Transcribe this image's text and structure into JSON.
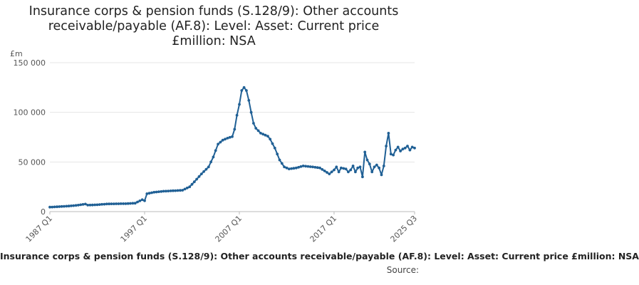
{
  "title_lines": [
    "Insurance corps & pension funds (S.128/9): Other accounts",
    "receivable/payable (AF.8): Level: Asset: Current price",
    "£million: NSA"
  ],
  "legend_label": "Insurance corps & pension funds (S.128/9): Other accounts receivable/payable (AF.8): Level: Asset: Current price £million: NSA",
  "source_label": "Source:",
  "colors": {
    "series": "#206095",
    "grid": "#e6e6e6",
    "axis": "#bbbbbb",
    "text": "#555555"
  },
  "chart_data": {
    "type": "line",
    "title": "Insurance corps & pension funds (S.128/9): Other accounts receivable/payable (AF.8): Level: Asset: Current price £million: NSA",
    "ylabel": "£m",
    "xlabel": "",
    "y_ticks": [
      0,
      50000,
      100000,
      150000
    ],
    "y_tick_labels": [
      "0",
      "50 000",
      "100 000",
      "150 000"
    ],
    "ylim": [
      0,
      150000
    ],
    "x_ticks": [
      "1987 Q1",
      "1997 Q1",
      "2007 Q1",
      "2017 Q1",
      "2025 Q3"
    ],
    "grid": true,
    "series": [
      {
        "name": "Insurance corps & pension funds (S.128/9): Other accounts receivable/payable (AF.8): Level: Asset: Current price £million: NSA",
        "start": "1987 Q1",
        "end": "2025 Q3",
        "keyframes": [
          [
            "1987 Q1",
            4500
          ],
          [
            "1988 Q1",
            5000
          ],
          [
            "1989 Q1",
            5600
          ],
          [
            "1990 Q1",
            6500
          ],
          [
            "1990 Q4",
            7600
          ],
          [
            "1991 Q1",
            6500
          ],
          [
            "1992 Q1",
            6900
          ],
          [
            "1993 Q1",
            7700
          ],
          [
            "1994 Q1",
            7900
          ],
          [
            "1995 Q1",
            8000
          ],
          [
            "1996 Q1",
            8500
          ],
          [
            "1996 Q4",
            12000
          ],
          [
            "1997 Q1",
            11000
          ],
          [
            "1997 Q2",
            18000
          ],
          [
            "1998 Q1",
            19500
          ],
          [
            "1999 Q1",
            20500
          ],
          [
            "2000 Q1",
            21000
          ],
          [
            "2001 Q1",
            21500
          ],
          [
            "2001 Q4",
            25000
          ],
          [
            "2002 Q2",
            30000
          ],
          [
            "2003 Q1",
            38000
          ],
          [
            "2003 Q4",
            45000
          ],
          [
            "2004 Q2",
            55000
          ],
          [
            "2004 Q4",
            68000
          ],
          [
            "2005 Q2",
            72000
          ],
          [
            "2005 Q4",
            74000
          ],
          [
            "2006 Q2",
            75500
          ],
          [
            "2006 Q3",
            83000
          ],
          [
            "2006 Q4",
            97000
          ],
          [
            "2007 Q1",
            108000
          ],
          [
            "2007 Q2",
            122000
          ],
          [
            "2007 Q3",
            125000
          ],
          [
            "2007 Q4",
            122000
          ],
          [
            "2008 Q1",
            112000
          ],
          [
            "2008 Q2",
            100000
          ],
          [
            "2008 Q3",
            89000
          ],
          [
            "2008 Q4",
            84000
          ],
          [
            "2009 Q2",
            79000
          ],
          [
            "2010 Q1",
            76000
          ],
          [
            "2010 Q2",
            73000
          ],
          [
            "2010 Q4",
            64000
          ],
          [
            "2011 Q2",
            52000
          ],
          [
            "2011 Q4",
            45000
          ],
          [
            "2012 Q2",
            43000
          ],
          [
            "2013 Q1",
            44000
          ],
          [
            "2013 Q4",
            46000
          ],
          [
            "2014 Q4",
            45000
          ],
          [
            "2015 Q3",
            44000
          ],
          [
            "2016 Q1",
            41000
          ],
          [
            "2016 Q3",
            38000
          ],
          [
            "2017 Q1",
            42000
          ],
          [
            "2017 Q2",
            45000
          ],
          [
            "2017 Q3",
            40000
          ],
          [
            "2017 Q4",
            44000
          ],
          [
            "2018 Q2",
            43000
          ],
          [
            "2018 Q3",
            40000
          ],
          [
            "2018 Q4",
            42000
          ],
          [
            "2019 Q1",
            46000
          ],
          [
            "2019 Q2",
            40000
          ],
          [
            "2019 Q3",
            44000
          ],
          [
            "2019 Q4",
            45000
          ],
          [
            "2020 Q1",
            35000
          ],
          [
            "2020 Q2",
            60000
          ],
          [
            "2020 Q3",
            52000
          ],
          [
            "2020 Q4",
            48000
          ],
          [
            "2021 Q1",
            40000
          ],
          [
            "2021 Q2",
            45000
          ],
          [
            "2021 Q3",
            47000
          ],
          [
            "2021 Q4",
            44000
          ],
          [
            "2022 Q1",
            37000
          ],
          [
            "2022 Q2",
            46000
          ],
          [
            "2022 Q3",
            66000
          ],
          [
            "2022 Q4",
            79000
          ],
          [
            "2023 Q1",
            58000
          ],
          [
            "2023 Q2",
            57000
          ],
          [
            "2023 Q3",
            62000
          ],
          [
            "2023 Q4",
            65000
          ],
          [
            "2024 Q1",
            61000
          ],
          [
            "2024 Q2",
            63000
          ],
          [
            "2024 Q3",
            64000
          ],
          [
            "2024 Q4",
            66000
          ],
          [
            "2025 Q1",
            62000
          ],
          [
            "2025 Q2",
            65000
          ],
          [
            "2025 Q3",
            64000
          ]
        ]
      }
    ]
  }
}
